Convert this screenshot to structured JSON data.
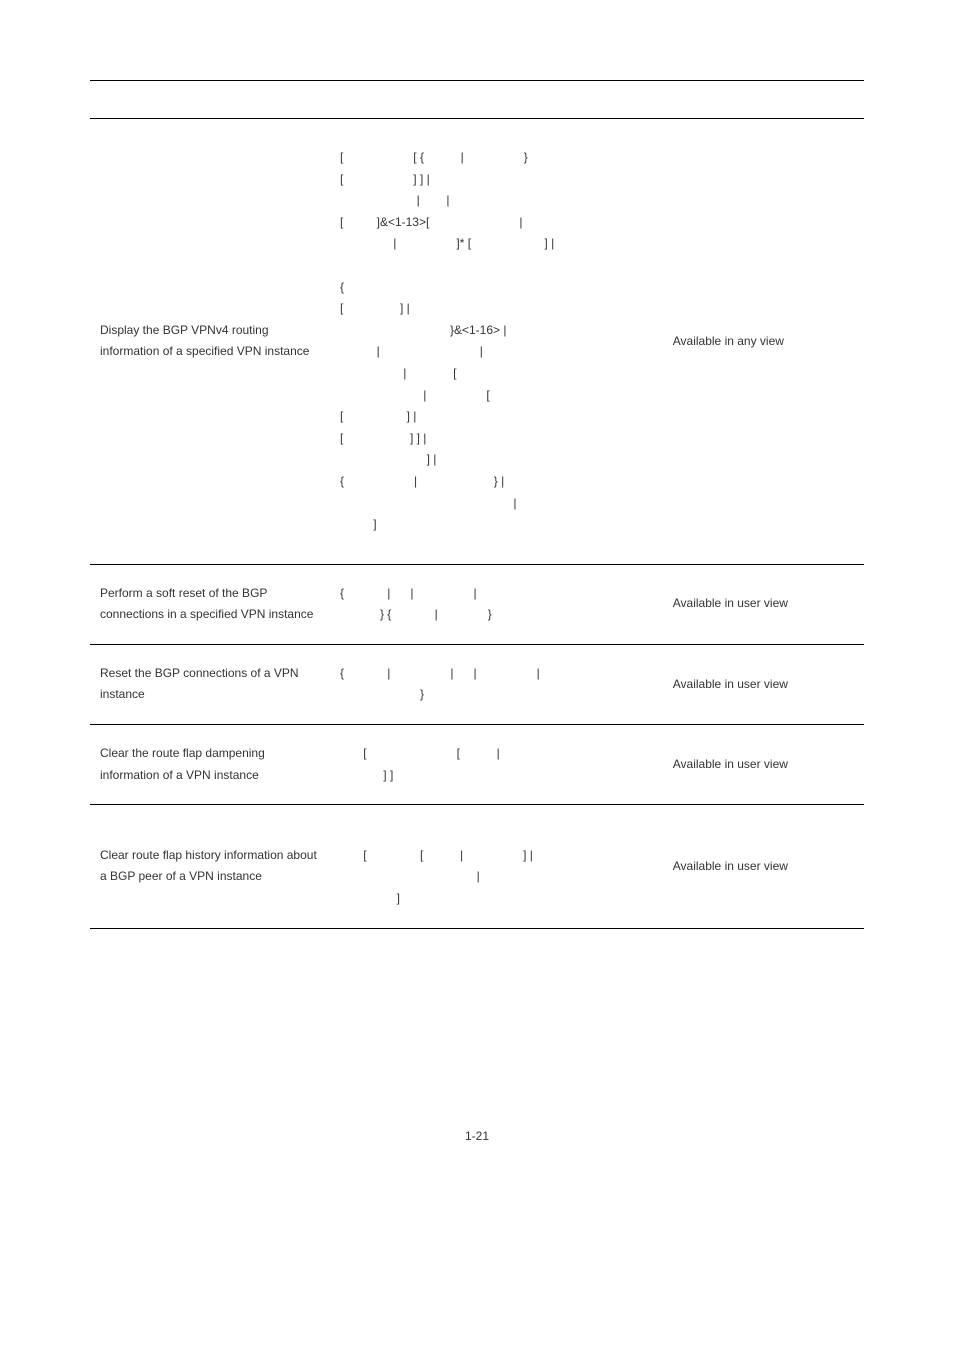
{
  "rows": [
    {
      "task": "Display the BGP VPNv4 routing information of a specified VPN instance",
      "command": "[                     [ {           |                  }\n[                     ] ] |\n                       |        |\n[          ]&<1-13>[                           |\n                |                  ]* [                      ] |\n\n{\n[                 ] |\n                                 }&<1-16> |\n           |                              |\n                   |              [\n                         |                  [\n[                   ] |\n[                    ] ] |\n                          ] |\n{                     |                       } |\n                                                    |\n          ]",
      "view": "Available in any view"
    },
    {
      "task": "Perform a soft reset of the BGP connections in a specified VPN instance",
      "command": "{             |      |                  |\n            } {             |               }",
      "view": "Available in user view"
    },
    {
      "task": "Reset the BGP connections of a VPN instance",
      "command": "{             |                  |      |                  |\n                        }",
      "view": "Available in user view"
    },
    {
      "task": "Clear the route flap dampening information of a VPN instance",
      "command": "       [                           [           |\n             ] ]",
      "view": "Available in user view"
    },
    {
      "task": "Clear route flap history information about a BGP peer of a VPN instance",
      "command": "\n       [                [           |                  ] |\n                                         |\n                 ]",
      "view": "Available in user view"
    }
  ],
  "page_number": "1-21"
}
